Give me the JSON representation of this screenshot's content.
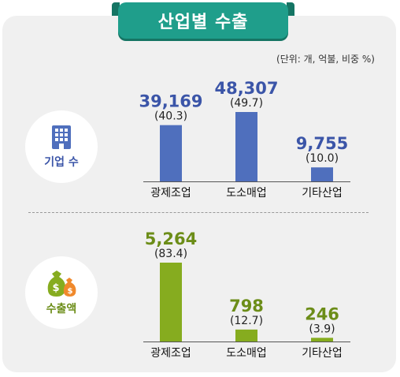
{
  "title": "산업별 수출",
  "unit_note": "(단위: 개, 억불, 비중 %)",
  "colors": {
    "header": "#1f9e8b",
    "companies_bar": "#4f6fbd",
    "companies_value": "#3b55a8",
    "exports_bar": "#86ac1f",
    "exports_value": "#6c8d18"
  },
  "icons": {
    "companies": "office-building-icon",
    "exports": "money-bags-icon"
  },
  "chart_data": [
    {
      "type": "bar",
      "name": "기업 수",
      "categories": [
        "광제조업",
        "도소매업",
        "기타산업"
      ],
      "values": [
        39169,
        48307,
        9755
      ],
      "value_labels": [
        "39,169",
        "48,307",
        "9,755"
      ],
      "shares": [
        "(40.3)",
        "(49.7)",
        "(10.0)"
      ],
      "ylim": [
        0,
        48307
      ]
    },
    {
      "type": "bar",
      "name": "수출액",
      "categories": [
        "광제조업",
        "도소매업",
        "기타산업"
      ],
      "values": [
        5264,
        798,
        246
      ],
      "value_labels": [
        "5,264",
        "798",
        "246"
      ],
      "shares": [
        "(83.4)",
        "(12.7)",
        "(3.9)"
      ],
      "ylim": [
        0,
        5264
      ]
    }
  ]
}
